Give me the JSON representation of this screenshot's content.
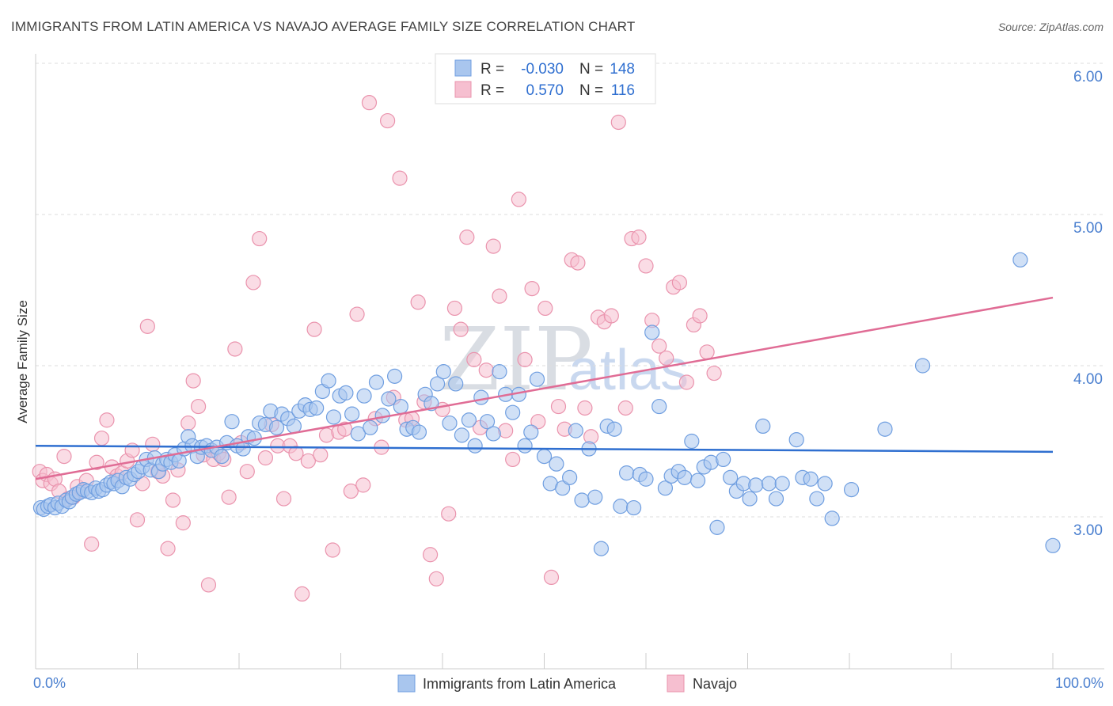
{
  "header": {
    "title": "IMMIGRANTS FROM LATIN AMERICA VS NAVAJO AVERAGE FAMILY SIZE CORRELATION CHART",
    "source": "Source: ZipAtlas.com"
  },
  "watermark": {
    "zip": "ZIP",
    "atlas": "atlas"
  },
  "legend": {
    "rows": [
      {
        "r_label": "R =",
        "r_value": "-0.030",
        "n_label": "N =",
        "n_value": "148"
      },
      {
        "r_label": "R =",
        "r_value": "0.570",
        "n_label": "N =",
        "n_value": "116"
      }
    ]
  },
  "bottom_legend": [
    {
      "label": "Immigrants from Latin America"
    },
    {
      "label": "Navajo"
    }
  ],
  "colors": {
    "blue_fill": "#a9c6ee",
    "blue_stroke": "#6f9ee0",
    "blue_line": "#2f6fd0",
    "pink_fill": "#f6bfd0",
    "pink_stroke": "#ea93ad",
    "pink_line": "#e06c95",
    "grid": "#dddddd",
    "axis_text": "#4a7fcf"
  },
  "chart_data": {
    "type": "scatter",
    "title": "IMMIGRANTS FROM LATIN AMERICA VS NAVAJO AVERAGE FAMILY SIZE CORRELATION CHART",
    "xlabel": "",
    "ylabel": "Average Family Size",
    "xlim": [
      0,
      100
    ],
    "ylim": [
      2.0,
      6.1
    ],
    "x_tick_labels": [
      "0.0%",
      "100.0%"
    ],
    "y_ticks": [
      3.0,
      4.0,
      5.0,
      6.0
    ],
    "y_tick_labels": [
      "3.00",
      "4.00",
      "5.00",
      "6.00"
    ],
    "grid": true,
    "legend_position": "top-center",
    "series": [
      {
        "name": "Immigrants from Latin America",
        "r": -0.03,
        "n": 148,
        "trend": {
          "x": [
            0,
            100
          ],
          "y": [
            3.47,
            3.43
          ]
        },
        "points": [
          [
            0.5,
            3.06
          ],
          [
            0.8,
            3.05
          ],
          [
            1.2,
            3.07
          ],
          [
            1.5,
            3.08
          ],
          [
            1.9,
            3.06
          ],
          [
            2.2,
            3.09
          ],
          [
            2.6,
            3.07
          ],
          [
            3.0,
            3.11
          ],
          [
            3.3,
            3.1
          ],
          [
            3.6,
            3.13
          ],
          [
            4.0,
            3.15
          ],
          [
            4.3,
            3.16
          ],
          [
            4.7,
            3.18
          ],
          [
            5.1,
            3.17
          ],
          [
            5.5,
            3.16
          ],
          [
            5.9,
            3.19
          ],
          [
            6.2,
            3.17
          ],
          [
            6.6,
            3.18
          ],
          [
            7.0,
            3.21
          ],
          [
            7.4,
            3.23
          ],
          [
            7.7,
            3.22
          ],
          [
            8.1,
            3.24
          ],
          [
            8.5,
            3.2
          ],
          [
            8.9,
            3.26
          ],
          [
            9.3,
            3.25
          ],
          [
            9.7,
            3.28
          ],
          [
            10.1,
            3.3
          ],
          [
            10.5,
            3.33
          ],
          [
            10.9,
            3.38
          ],
          [
            11.3,
            3.31
          ],
          [
            11.7,
            3.39
          ],
          [
            12.1,
            3.3
          ],
          [
            12.5,
            3.35
          ],
          [
            12.9,
            3.38
          ],
          [
            13.3,
            3.36
          ],
          [
            13.7,
            3.41
          ],
          [
            14.1,
            3.37
          ],
          [
            14.6,
            3.45
          ],
          [
            15.0,
            3.53
          ],
          [
            15.4,
            3.47
          ],
          [
            15.9,
            3.4
          ],
          [
            16.3,
            3.46
          ],
          [
            16.8,
            3.47
          ],
          [
            17.3,
            3.44
          ],
          [
            17.8,
            3.46
          ],
          [
            18.3,
            3.4
          ],
          [
            18.8,
            3.49
          ],
          [
            19.3,
            3.63
          ],
          [
            19.8,
            3.47
          ],
          [
            20.4,
            3.45
          ],
          [
            20.9,
            3.53
          ],
          [
            21.5,
            3.52
          ],
          [
            22.0,
            3.62
          ],
          [
            22.6,
            3.61
          ],
          [
            23.1,
            3.7
          ],
          [
            23.7,
            3.59
          ],
          [
            24.2,
            3.68
          ],
          [
            24.8,
            3.65
          ],
          [
            25.4,
            3.6
          ],
          [
            25.9,
            3.7
          ],
          [
            26.5,
            3.74
          ],
          [
            27.0,
            3.71
          ],
          [
            27.6,
            3.72
          ],
          [
            28.2,
            3.83
          ],
          [
            28.8,
            3.9
          ],
          [
            29.3,
            3.66
          ],
          [
            29.9,
            3.8
          ],
          [
            30.5,
            3.82
          ],
          [
            31.1,
            3.68
          ],
          [
            31.7,
            3.55
          ],
          [
            32.3,
            3.8
          ],
          [
            32.9,
            3.59
          ],
          [
            33.5,
            3.89
          ],
          [
            34.1,
            3.67
          ],
          [
            34.7,
            3.78
          ],
          [
            35.3,
            3.93
          ],
          [
            35.9,
            3.73
          ],
          [
            36.5,
            3.58
          ],
          [
            37.1,
            3.59
          ],
          [
            37.7,
            3.56
          ],
          [
            38.3,
            3.81
          ],
          [
            38.9,
            3.75
          ],
          [
            39.5,
            3.88
          ],
          [
            40.1,
            3.96
          ],
          [
            40.7,
            3.62
          ],
          [
            41.3,
            3.88
          ],
          [
            41.9,
            3.54
          ],
          [
            42.6,
            3.64
          ],
          [
            43.2,
            3.47
          ],
          [
            43.8,
            3.79
          ],
          [
            44.4,
            3.63
          ],
          [
            45.0,
            3.55
          ],
          [
            45.6,
            3.96
          ],
          [
            46.2,
            3.81
          ],
          [
            46.9,
            3.69
          ],
          [
            47.5,
            3.81
          ],
          [
            48.1,
            3.47
          ],
          [
            48.7,
            3.56
          ],
          [
            49.3,
            3.91
          ],
          [
            50.0,
            3.4
          ],
          [
            50.6,
            3.22
          ],
          [
            51.2,
            3.35
          ],
          [
            51.8,
            3.19
          ],
          [
            52.5,
            3.26
          ],
          [
            53.1,
            3.57
          ],
          [
            53.7,
            3.11
          ],
          [
            54.4,
            3.45
          ],
          [
            55.0,
            3.13
          ],
          [
            55.6,
            2.79
          ],
          [
            56.2,
            3.6
          ],
          [
            56.9,
            3.58
          ],
          [
            57.5,
            3.07
          ],
          [
            58.1,
            3.29
          ],
          [
            58.8,
            3.06
          ],
          [
            59.4,
            3.28
          ],
          [
            60.0,
            3.25
          ],
          [
            60.6,
            4.22
          ],
          [
            61.3,
            3.73
          ],
          [
            61.9,
            3.19
          ],
          [
            62.5,
            3.27
          ],
          [
            63.2,
            3.3
          ],
          [
            63.8,
            3.26
          ],
          [
            64.5,
            3.5
          ],
          [
            65.1,
            3.24
          ],
          [
            65.7,
            3.33
          ],
          [
            66.4,
            3.36
          ],
          [
            67.0,
            2.93
          ],
          [
            67.6,
            3.38
          ],
          [
            68.3,
            3.26
          ],
          [
            68.9,
            3.17
          ],
          [
            69.6,
            3.22
          ],
          [
            70.2,
            3.12
          ],
          [
            70.8,
            3.21
          ],
          [
            71.5,
            3.6
          ],
          [
            72.1,
            3.22
          ],
          [
            72.8,
            3.12
          ],
          [
            73.4,
            3.22
          ],
          [
            74.8,
            3.51
          ],
          [
            75.4,
            3.26
          ],
          [
            76.2,
            3.25
          ],
          [
            76.8,
            3.12
          ],
          [
            77.6,
            3.22
          ],
          [
            78.3,
            2.99
          ],
          [
            80.2,
            3.18
          ],
          [
            83.5,
            3.58
          ],
          [
            87.2,
            4.0
          ],
          [
            96.8,
            4.7
          ],
          [
            100.0,
            2.81
          ]
        ]
      },
      {
        "name": "Navajo",
        "r": 0.57,
        "n": 116,
        "trend": {
          "x": [
            0,
            100
          ],
          "y": [
            3.25,
            4.45
          ]
        },
        "points": [
          [
            0.4,
            3.3
          ],
          [
            0.7,
            3.24
          ],
          [
            1.1,
            3.28
          ],
          [
            1.5,
            3.22
          ],
          [
            1.9,
            3.25
          ],
          [
            2.3,
            3.17
          ],
          [
            2.8,
            3.4
          ],
          [
            3.2,
            3.12
          ],
          [
            3.7,
            3.13
          ],
          [
            4.1,
            3.2
          ],
          [
            4.6,
            3.17
          ],
          [
            5.0,
            3.24
          ],
          [
            5.5,
            2.82
          ],
          [
            6.0,
            3.36
          ],
          [
            6.5,
            3.52
          ],
          [
            7.0,
            3.64
          ],
          [
            7.5,
            3.33
          ],
          [
            8.0,
            3.27
          ],
          [
            8.5,
            3.29
          ],
          [
            9.0,
            3.37
          ],
          [
            9.5,
            3.44
          ],
          [
            10.0,
            2.98
          ],
          [
            10.5,
            3.22
          ],
          [
            11.0,
            4.26
          ],
          [
            11.5,
            3.48
          ],
          [
            12.0,
            3.3
          ],
          [
            12.5,
            3.27
          ],
          [
            13.0,
            2.79
          ],
          [
            13.5,
            3.11
          ],
          [
            14.0,
            3.31
          ],
          [
            14.5,
            2.96
          ],
          [
            15.0,
            3.62
          ],
          [
            15.5,
            3.9
          ],
          [
            16.0,
            3.73
          ],
          [
            16.5,
            3.41
          ],
          [
            17.0,
            2.55
          ],
          [
            17.5,
            3.38
          ],
          [
            18.0,
            3.42
          ],
          [
            18.5,
            3.38
          ],
          [
            19.0,
            3.13
          ],
          [
            19.6,
            4.11
          ],
          [
            20.2,
            3.49
          ],
          [
            20.8,
            3.3
          ],
          [
            21.4,
            4.55
          ],
          [
            22.0,
            4.84
          ],
          [
            22.6,
            3.39
          ],
          [
            23.2,
            3.61
          ],
          [
            23.8,
            3.47
          ],
          [
            24.4,
            3.12
          ],
          [
            25.0,
            3.47
          ],
          [
            25.6,
            3.42
          ],
          [
            26.2,
            2.49
          ],
          [
            26.8,
            3.37
          ],
          [
            27.4,
            4.24
          ],
          [
            28.0,
            3.41
          ],
          [
            28.6,
            3.54
          ],
          [
            29.2,
            2.78
          ],
          [
            29.8,
            3.56
          ],
          [
            30.4,
            3.58
          ],
          [
            31.0,
            3.17
          ],
          [
            31.6,
            4.34
          ],
          [
            32.2,
            3.21
          ],
          [
            32.8,
            5.74
          ],
          [
            33.4,
            3.65
          ],
          [
            34.0,
            3.46
          ],
          [
            34.6,
            5.62
          ],
          [
            35.2,
            3.79
          ],
          [
            35.8,
            5.24
          ],
          [
            36.4,
            3.64
          ],
          [
            37.0,
            3.65
          ],
          [
            37.6,
            4.42
          ],
          [
            38.2,
            3.76
          ],
          [
            38.8,
            2.75
          ],
          [
            39.4,
            2.59
          ],
          [
            40.0,
            3.71
          ],
          [
            40.6,
            3.02
          ],
          [
            41.2,
            4.38
          ],
          [
            41.8,
            4.24
          ],
          [
            42.4,
            4.85
          ],
          [
            43.1,
            4.04
          ],
          [
            43.7,
            3.59
          ],
          [
            44.3,
            3.97
          ],
          [
            45.0,
            4.79
          ],
          [
            45.6,
            4.46
          ],
          [
            46.2,
            3.57
          ],
          [
            46.9,
            3.38
          ],
          [
            47.5,
            5.1
          ],
          [
            48.1,
            4.04
          ],
          [
            48.8,
            4.51
          ],
          [
            49.4,
            3.63
          ],
          [
            50.1,
            4.38
          ],
          [
            50.7,
            2.6
          ],
          [
            51.4,
            3.73
          ],
          [
            52.0,
            3.58
          ],
          [
            52.7,
            4.7
          ],
          [
            53.3,
            4.68
          ],
          [
            54.0,
            3.72
          ],
          [
            54.6,
            3.53
          ],
          [
            55.3,
            4.32
          ],
          [
            55.9,
            4.29
          ],
          [
            56.6,
            4.33
          ],
          [
            57.3,
            5.61
          ],
          [
            58.0,
            3.72
          ],
          [
            58.6,
            4.84
          ],
          [
            59.3,
            4.85
          ],
          [
            60.0,
            4.66
          ],
          [
            60.6,
            4.3
          ],
          [
            61.3,
            4.13
          ],
          [
            62.0,
            4.05
          ],
          [
            62.7,
            4.52
          ],
          [
            63.3,
            4.55
          ],
          [
            64.0,
            3.89
          ],
          [
            64.7,
            4.27
          ],
          [
            65.3,
            4.33
          ],
          [
            66.0,
            4.09
          ],
          [
            66.7,
            3.95
          ]
        ]
      }
    ]
  }
}
